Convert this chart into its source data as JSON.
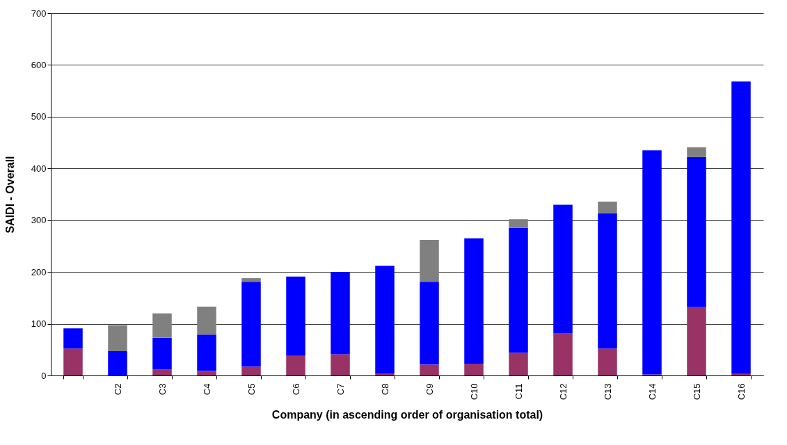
{
  "chart_data": {
    "type": "bar",
    "stacked": true,
    "xlabel": "Company (in ascending order of organisation total)",
    "ylabel": "SAIDI - Overall",
    "categories": [
      null,
      "C2",
      "C3",
      "C4",
      "C5",
      "C6",
      "C7",
      "C8",
      "C9",
      "C10",
      "C11",
      "C12",
      "C13",
      "C14",
      "C15",
      "C16"
    ],
    "series": [
      {
        "color": "#993366",
        "values": [
          52,
          0,
          12,
          9,
          17,
          38,
          41,
          4,
          21,
          23,
          44,
          82,
          52,
          2,
          132,
          3
        ]
      },
      {
        "color": "#0000ff",
        "values": [
          39,
          47,
          61,
          70,
          164,
          153,
          159,
          208,
          160,
          242,
          241,
          248,
          261,
          433,
          290,
          565
        ]
      },
      {
        "color": "#808080",
        "values": [
          null,
          50,
          47,
          54,
          7,
          null,
          null,
          null,
          81,
          null,
          17,
          null,
          23,
          null,
          19,
          null
        ]
      }
    ],
    "ylim": [
      0,
      700
    ],
    "yticks": [
      0,
      100,
      200,
      300,
      400,
      500,
      600,
      700
    ],
    "grid": "y",
    "legend": false
  }
}
